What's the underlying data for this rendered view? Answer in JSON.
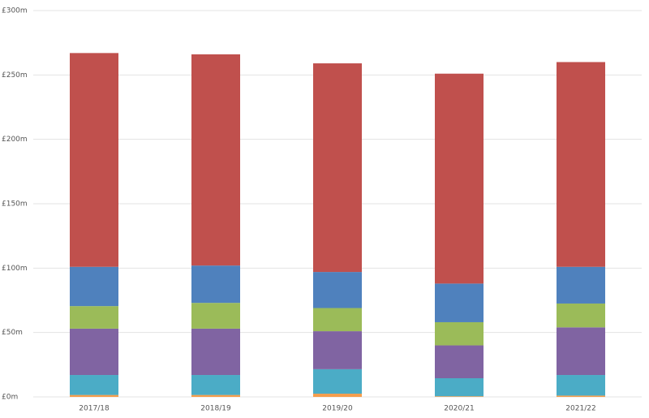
{
  "chart_data": {
    "type": "stacked-bar",
    "categories": [
      "2017/18",
      "2018/19",
      "2019/20",
      "2020/21",
      "2021/22"
    ],
    "series": [
      {
        "color": "#f59d4c",
        "values": [
          1.5,
          1.5,
          2.5,
          0.5,
          1
        ]
      },
      {
        "color": "#4bacc6",
        "values": [
          15.5,
          15.5,
          19,
          14,
          16
        ]
      },
      {
        "color": "#8064a2",
        "values": [
          36,
          36,
          29.5,
          25.5,
          37
        ]
      },
      {
        "color": "#9bbb59",
        "values": [
          17.5,
          20,
          18,
          18,
          18.5
        ]
      },
      {
        "color": "#4f81bd",
        "values": [
          30.5,
          29,
          28,
          30,
          28.5
        ]
      },
      {
        "color": "#c0504d",
        "values": [
          166,
          164,
          162,
          163,
          159
        ]
      }
    ],
    "ylim": [
      0,
      300
    ],
    "yticks": [
      {
        "value": 0,
        "label": "£0m"
      },
      {
        "value": 50,
        "label": "£50m"
      },
      {
        "value": 100,
        "label": "£100m"
      },
      {
        "value": 150,
        "label": "£150m"
      },
      {
        "value": 200,
        "label": "£200m"
      },
      {
        "value": 250,
        "label": "£250m"
      },
      {
        "value": 300,
        "label": "£300m"
      }
    ],
    "grid": true
  }
}
